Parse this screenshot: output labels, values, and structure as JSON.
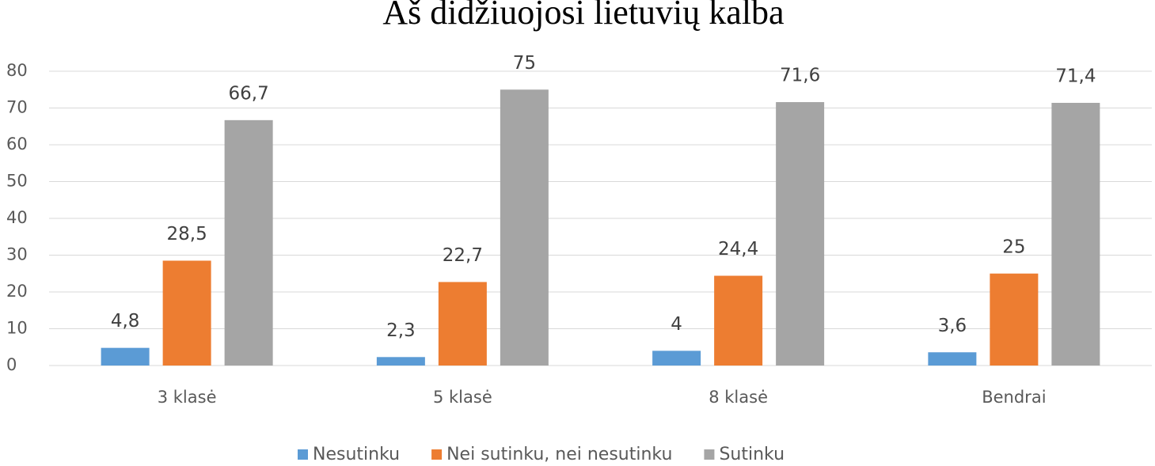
{
  "chart_data": {
    "type": "bar",
    "title": "Aš didžiuojosi lietuvių kalba",
    "categories": [
      "3 klasė",
      "5 klasė",
      "8 klasė",
      "Bendrai"
    ],
    "series": [
      {
        "name": "Nesutinku",
        "color": "#5b9bd5",
        "values": [
          4.8,
          2.3,
          4,
          3.6
        ],
        "value_labels": [
          "4,8",
          "2,3",
          "4",
          "3,6"
        ]
      },
      {
        "name": "Nei sutinku, nei nesutinku",
        "color": "#ed7d31",
        "values": [
          28.5,
          22.7,
          24.4,
          25
        ],
        "value_labels": [
          "28,5",
          "22,7",
          "24,4",
          "25"
        ]
      },
      {
        "name": "Sutinku",
        "color": "#a5a5a5",
        "values": [
          66.7,
          75,
          71.6,
          71.4
        ],
        "value_labels": [
          "66,7",
          "75",
          "71,6",
          "71,4"
        ]
      }
    ],
    "ylim": [
      0,
      80
    ],
    "yticks": [
      0,
      10,
      20,
      30,
      40,
      50,
      60,
      70,
      80
    ],
    "grid": true,
    "legend": "bottom"
  }
}
